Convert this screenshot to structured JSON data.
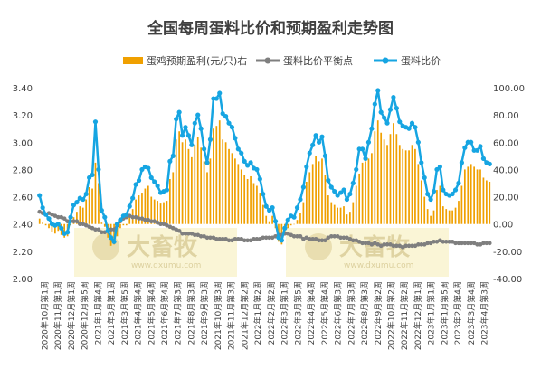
{
  "chart_data": {
    "type": "bar+line",
    "title": "全国每周蛋料比价和预期盈利走势图",
    "legend": [
      {
        "name": "蛋鸡预期盈利(元/只)右",
        "kind": "bar",
        "color": "#f0a000"
      },
      {
        "name": "蛋料比价平衡点",
        "kind": "line",
        "color": "#7f7f7f"
      },
      {
        "name": "蛋料比价",
        "kind": "line",
        "color": "#16a5e2"
      }
    ],
    "legend_placement": "top",
    "left_axis": {
      "ylim": [
        2.0,
        3.4
      ],
      "ticks": [
        "2.00",
        "2.20",
        "2.40",
        "2.60",
        "2.80",
        "3.00",
        "3.20",
        "3.40"
      ]
    },
    "right_axis": {
      "ylim": [
        -40,
        100
      ],
      "ticks": [
        "-40.00",
        "-20.00",
        "0.00",
        "20.00",
        "40.00",
        "60.00",
        "80.00",
        "100.00"
      ]
    },
    "x_tick_labels": [
      "2020年10月第1周",
      "2020年11月第1周",
      "2020年12月第1周",
      "2020年12月第5周",
      "2021年1月第4周",
      "2021年3月第1周",
      "2021年3月第5周",
      "2021年4月第4周",
      "2021年5月第4周",
      "2021年6月第4周",
      "2021年7月第3周",
      "2021年8月第3周",
      "2021年9月第3周",
      "2021年10月第3周",
      "2021年11月第3周",
      "2021年12月第2周",
      "2022年1月第2周",
      "2022年2月第2周",
      "2022年3月第1周",
      "2022年3月第5周",
      "2022年4月第4周",
      "2022年5月第4周",
      "2022年6月第3周",
      "2022年7月第3周",
      "2022年8月第3周",
      "2022年9月第2周",
      "2022年10月第2周",
      "2022年11月第2周",
      "2022年12月第1周",
      "2023年1月第1周",
      "2023年1月第5周",
      "2023年2月第4周",
      "2023年3月第4周",
      "2023年4月第3周"
    ],
    "ratio": [
      2.61,
      2.52,
      2.47,
      2.44,
      2.4,
      2.39,
      2.4,
      2.37,
      2.33,
      2.34,
      2.45,
      2.54,
      2.56,
      2.59,
      2.58,
      2.62,
      2.74,
      2.76,
      3.15,
      2.8,
      2.5,
      2.45,
      2.35,
      2.3,
      2.27,
      2.4,
      2.43,
      2.46,
      2.47,
      2.53,
      2.59,
      2.69,
      2.72,
      2.8,
      2.82,
      2.81,
      2.74,
      2.71,
      2.68,
      2.63,
      2.64,
      2.65,
      2.86,
      2.9,
      3.17,
      3.22,
      3.05,
      3.11,
      3.05,
      2.98,
      3.14,
      3.2,
      3.1,
      2.95,
      2.85,
      3.02,
      3.32,
      3.32,
      3.36,
      3.21,
      3.19,
      3.14,
      3.11,
      3.03,
      2.95,
      2.92,
      2.86,
      2.83,
      2.85,
      2.81,
      2.8,
      2.73,
      2.62,
      2.53,
      2.5,
      2.52,
      2.42,
      2.3,
      2.28,
      2.37,
      2.43,
      2.46,
      2.45,
      2.52,
      2.58,
      2.67,
      2.82,
      2.92,
      2.98,
      3.05,
      3.0,
      3.04,
      2.9,
      2.72,
      2.67,
      2.64,
      2.61,
      2.63,
      2.65,
      2.58,
      2.62,
      2.7,
      2.8,
      2.95,
      2.95,
      2.88,
      3.0,
      3.1,
      3.28,
      3.38,
      3.22,
      3.18,
      3.14,
      3.24,
      3.33,
      3.25,
      3.15,
      3.12,
      3.11,
      3.1,
      3.14,
      3.11,
      3.0,
      2.85,
      2.74,
      2.62,
      2.58,
      2.64,
      2.8,
      2.82,
      2.65,
      2.62,
      2.61,
      2.62,
      2.65,
      2.7,
      2.85,
      2.96,
      3.0,
      3.0,
      2.94,
      2.94,
      2.97,
      2.88,
      2.85,
      2.84
    ],
    "balance_point": [
      2.49,
      2.48,
      2.47,
      2.48,
      2.47,
      2.46,
      2.45,
      2.45,
      2.44,
      2.42,
      2.42,
      2.42,
      2.42,
      2.4,
      2.4,
      2.39,
      2.38,
      2.37,
      2.36,
      2.36,
      2.34,
      2.34,
      2.35,
      2.36,
      2.36,
      2.39,
      2.42,
      2.44,
      2.45,
      2.46,
      2.45,
      2.45,
      2.44,
      2.44,
      2.43,
      2.43,
      2.42,
      2.42,
      2.41,
      2.4,
      2.4,
      2.39,
      2.38,
      2.37,
      2.36,
      2.35,
      2.33,
      2.33,
      2.33,
      2.33,
      2.32,
      2.32,
      2.31,
      2.31,
      2.3,
      2.3,
      2.3,
      2.29,
      2.29,
      2.29,
      2.29,
      2.28,
      2.28,
      2.29,
      2.29,
      2.29,
      2.28,
      2.28,
      2.28,
      2.29,
      2.29,
      2.29,
      2.3,
      2.3,
      2.3,
      2.3,
      2.31,
      2.32,
      2.32,
      2.33,
      2.33,
      2.32,
      2.31,
      2.31,
      2.31,
      2.29,
      2.3,
      2.29,
      2.29,
      2.29,
      2.28,
      2.28,
      2.28,
      2.3,
      2.31,
      2.31,
      2.31,
      2.3,
      2.3,
      2.3,
      2.29,
      2.28,
      2.28,
      2.27,
      2.26,
      2.26,
      2.26,
      2.25,
      2.26,
      2.25,
      2.24,
      2.25,
      2.25,
      2.25,
      2.24,
      2.24,
      2.24,
      2.23,
      2.24,
      2.24,
      2.24,
      2.24,
      2.25,
      2.25,
      2.25,
      2.26,
      2.26,
      2.27,
      2.27,
      2.28,
      2.27,
      2.27,
      2.27,
      2.27,
      2.26,
      2.26,
      2.26,
      2.26,
      2.26,
      2.26,
      2.26,
      2.25,
      2.25,
      2.26,
      2.26,
      2.26
    ],
    "profit": [
      4,
      1,
      -1,
      -3,
      -6,
      -7,
      -5,
      -8,
      -10,
      -9,
      -1,
      5,
      9,
      13,
      12,
      18,
      27,
      26,
      45,
      30,
      1,
      -2,
      -10,
      -16,
      -15,
      -9,
      -3,
      -1,
      -1,
      5,
      11,
      18,
      21,
      23,
      26,
      28,
      20,
      18,
      17,
      15,
      16,
      17,
      33,
      38,
      62,
      68,
      60,
      62,
      55,
      49,
      58,
      64,
      56,
      46,
      38,
      48,
      70,
      72,
      76,
      62,
      60,
      55,
      52,
      48,
      44,
      40,
      36,
      33,
      35,
      30,
      28,
      23,
      14,
      6,
      2,
      6,
      -3,
      -13,
      -15,
      -8,
      -3,
      -1,
      0,
      3,
      8,
      16,
      31,
      38,
      44,
      50,
      46,
      48,
      36,
      21,
      16,
      14,
      12,
      12,
      13,
      7,
      9,
      16,
      28,
      37,
      45,
      46,
      48,
      52,
      68,
      76,
      67,
      62,
      58,
      66,
      74,
      66,
      58,
      55,
      54,
      54,
      58,
      55,
      44,
      32,
      20,
      11,
      6,
      10,
      25,
      28,
      13,
      11,
      10,
      10,
      12,
      17,
      28,
      40,
      42,
      44,
      42,
      40,
      40,
      34,
      32,
      31
    ],
    "watermark": {
      "brand": "大畜牧",
      "url": "www.dxumu.com"
    }
  }
}
